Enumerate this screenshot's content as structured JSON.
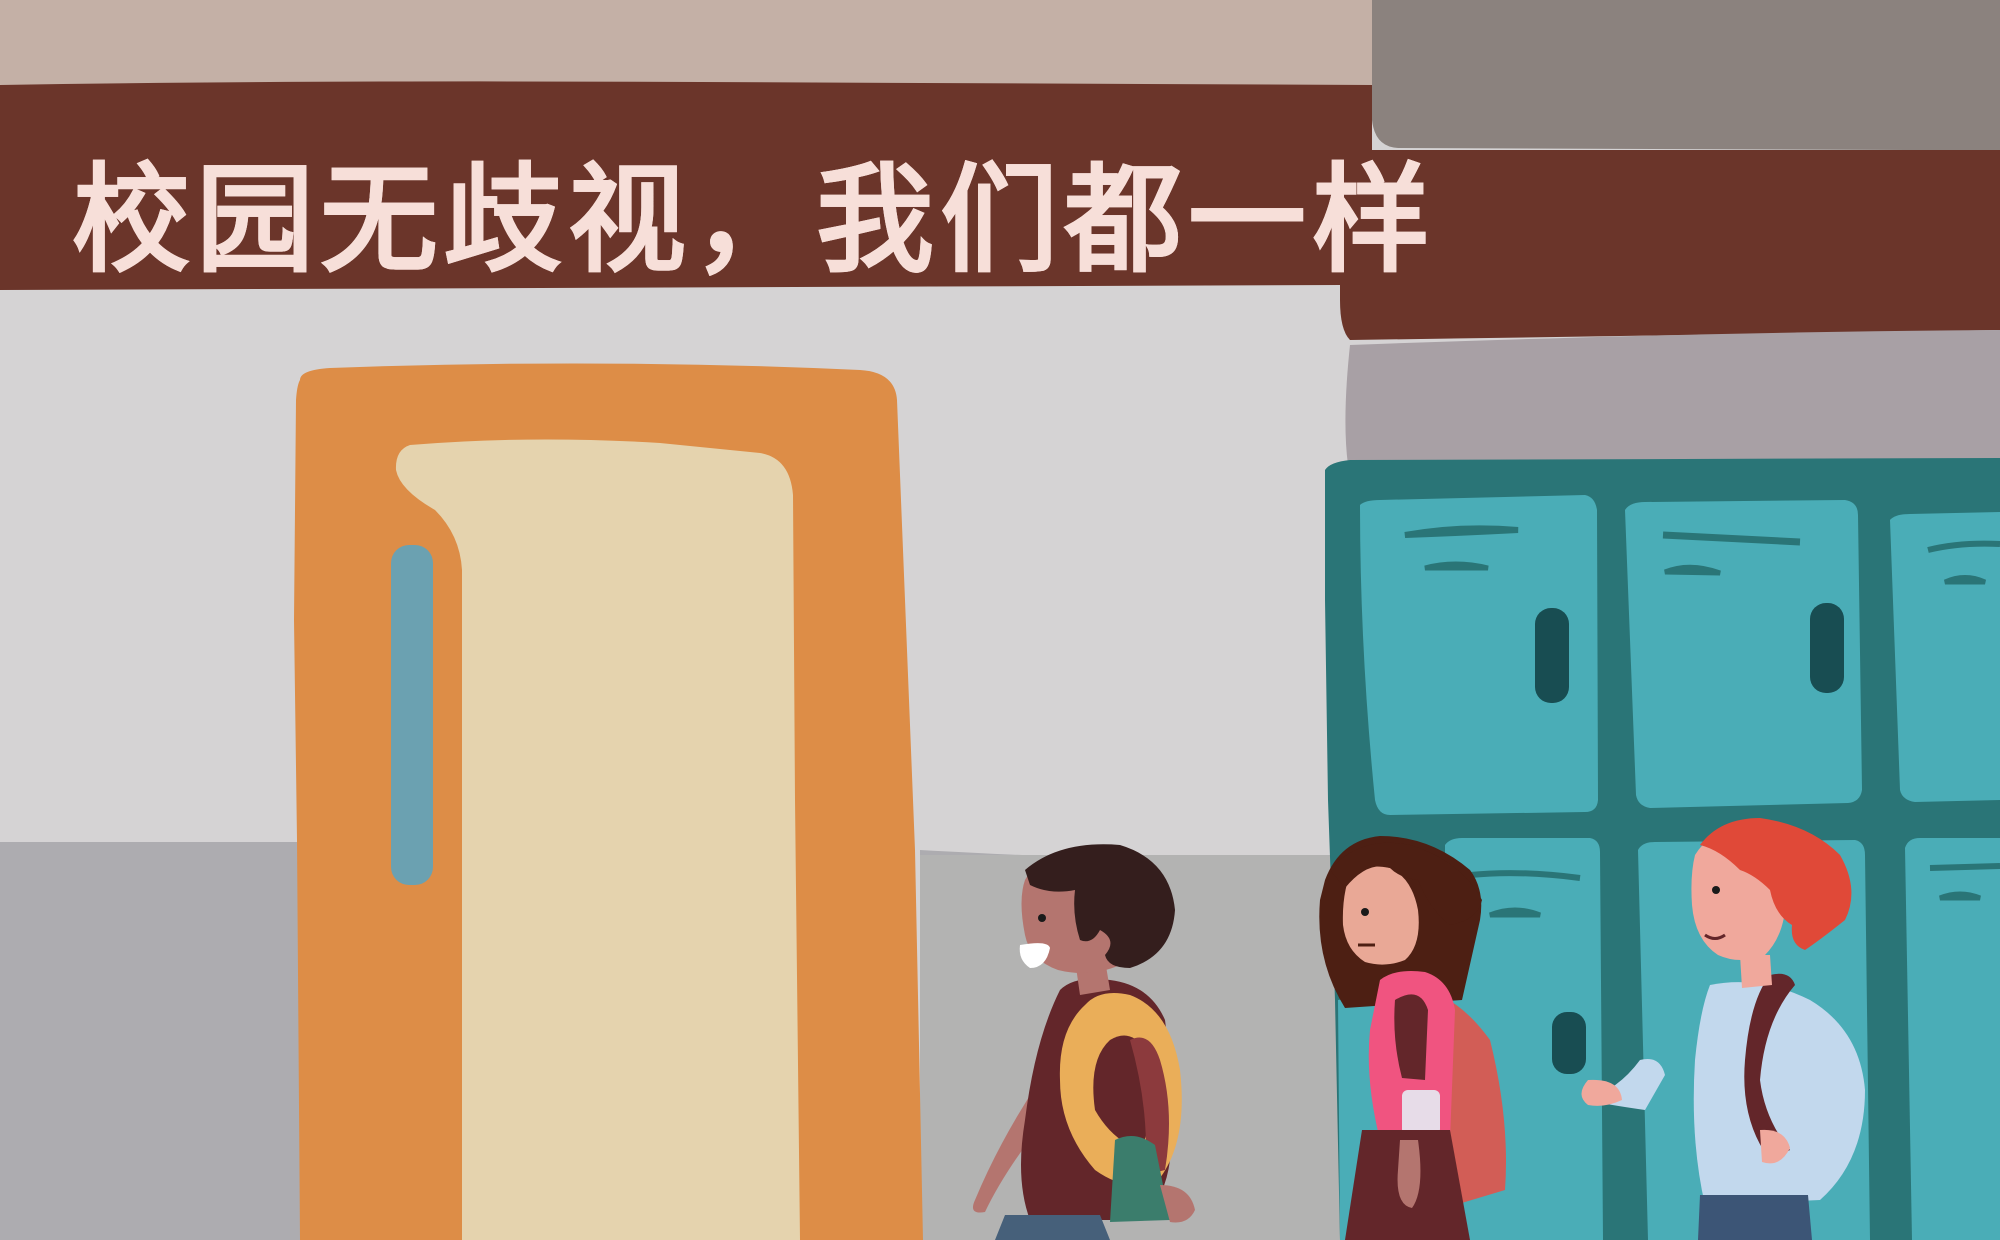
{
  "banner": {
    "slogan": "校园无歧视，我们都一样"
  },
  "illustration": {
    "scene": "school-hallway",
    "characters": [
      "student-boy-dark-hair",
      "student-girl-brown-hair",
      "student-boy-red-hair"
    ]
  },
  "colors": {
    "upper_wall": "#c4b0a6",
    "banner_brown": "#6b352a",
    "banner_text": "#f7dfd9",
    "hall_wall": "#d5d3d4",
    "floor": "#b3b3b2",
    "door_frame": "#dd8d47",
    "door_panel": "#e5d3ae",
    "door_handle": "#6ba1b1",
    "locker_frame": "#2a7577",
    "locker_door": "#4aadb7",
    "locker_dark": "#184d52"
  }
}
